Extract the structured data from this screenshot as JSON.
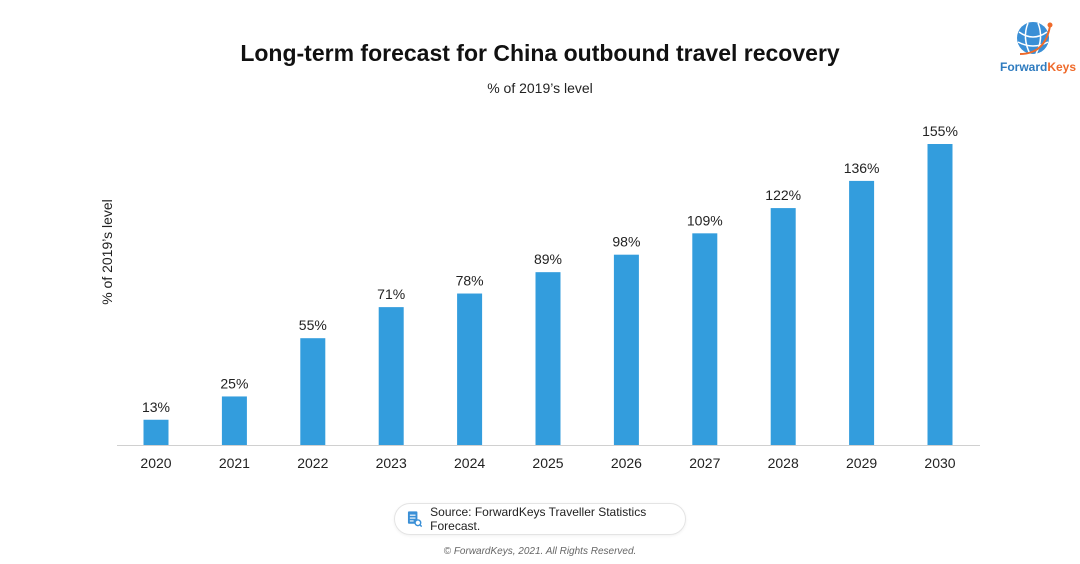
{
  "chart_data": {
    "type": "bar",
    "title": "Long-term forecast for China outbound travel recovery",
    "subtitle": "% of 2019’s level",
    "ylabel": "% of 2019’s level",
    "xlabel": "",
    "categories": [
      "2020",
      "2021",
      "2022",
      "2023",
      "2024",
      "2025",
      "2026",
      "2027",
      "2028",
      "2029",
      "2030"
    ],
    "values": [
      13,
      25,
      55,
      71,
      78,
      89,
      98,
      109,
      122,
      136,
      155
    ],
    "data_labels": [
      "13%",
      "25%",
      "55%",
      "71%",
      "78%",
      "89%",
      "98%",
      "109%",
      "122%",
      "136%",
      "155%"
    ],
    "ylim": [
      0,
      155
    ],
    "grid": false,
    "legend": "none",
    "bar_color": "#339ddd"
  },
  "logo": {
    "text_a": "Forward",
    "text_b": "Keys",
    "color_a": "#2e7bbf",
    "color_b": "#ef6a2a"
  },
  "source": {
    "icon": "document-search-icon",
    "text": "Source: ForwardKeys Traveller Statistics Forecast."
  },
  "copyright": "© ForwardKeys, 2021. All Rights Reserved."
}
